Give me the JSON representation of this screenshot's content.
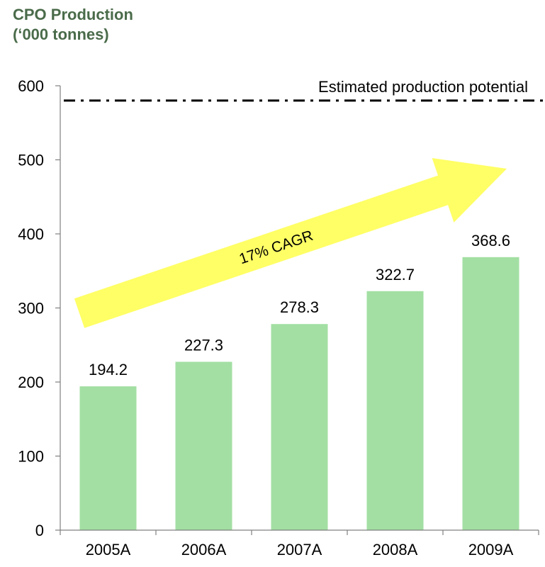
{
  "chart_data": {
    "type": "bar",
    "title_lines": [
      "CPO Production",
      "(‘000 tonnes)"
    ],
    "categories": [
      "2005A",
      "2006A",
      "2007A",
      "2008A",
      "2009A"
    ],
    "values": [
      194.2,
      227.3,
      278.3,
      322.7,
      368.6
    ],
    "data_labels": [
      "194.2",
      "227.3",
      "278.3",
      "322.7",
      "368.6"
    ],
    "ylim": [
      0,
      600
    ],
    "yticks": [
      0,
      100,
      200,
      300,
      400,
      500,
      600
    ],
    "grid": false,
    "reference_line": {
      "value": 580,
      "label": "Estimated production potential",
      "style": "dash-dot",
      "color": "#000000"
    },
    "annotation": {
      "text": "17% CAGR",
      "shape": "arrow",
      "color": "#ffff66"
    },
    "bar_color": "#a3dfa3"
  }
}
